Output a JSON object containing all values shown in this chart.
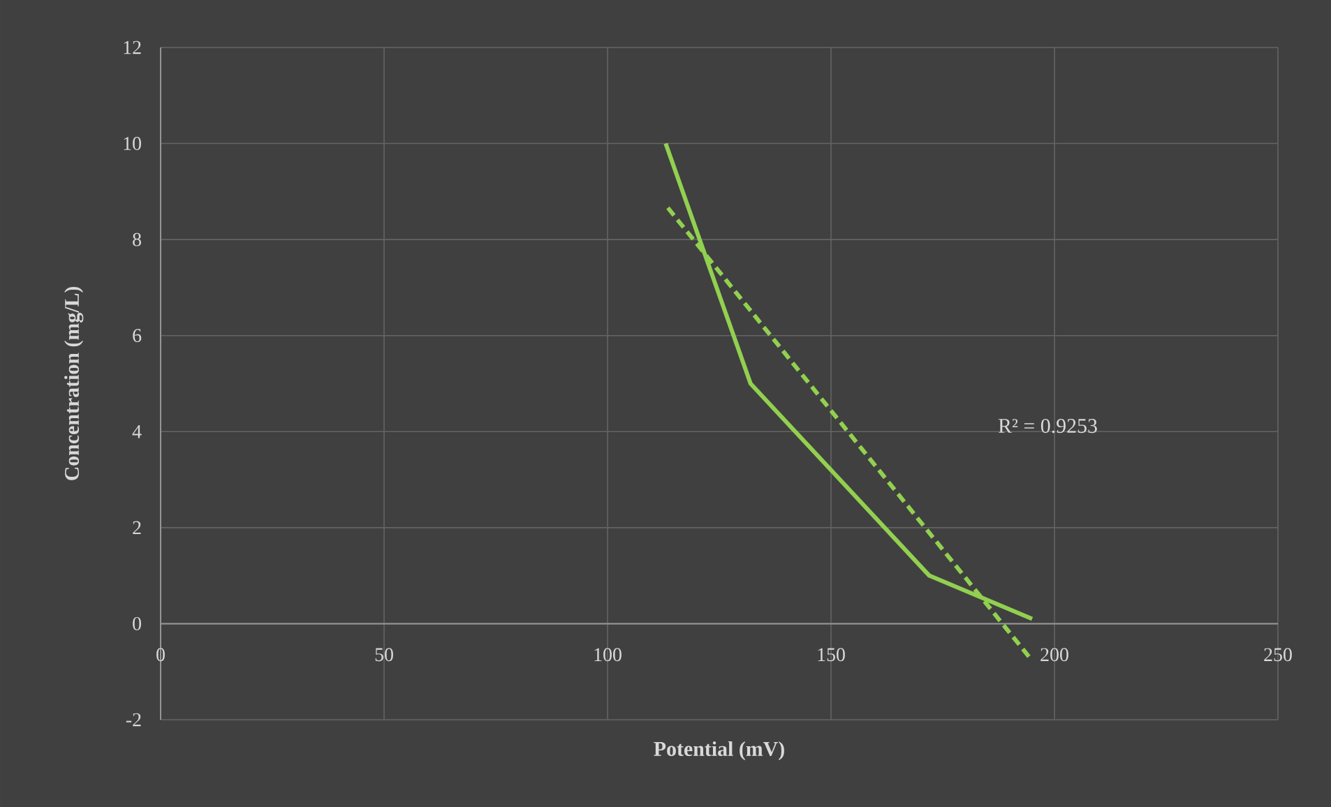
{
  "chart_data": {
    "type": "line",
    "xlabel": "Potential (mV)",
    "ylabel": "Concentration (mg/L)",
    "xlim": [
      0,
      250
    ],
    "xticks": [
      0,
      50,
      100,
      150,
      200,
      250
    ],
    "ylim": [
      -2,
      12
    ],
    "yticks": [
      -2,
      0,
      2,
      4,
      6,
      8,
      10,
      12
    ],
    "grid": true,
    "marker": "none",
    "series": [
      {
        "color": "#92d050",
        "line_style": "solid",
        "x": [
          113,
          132,
          172,
          195
        ],
        "values": [
          10,
          5,
          1,
          0.1
        ]
      },
      {
        "color": "#92d050",
        "line_style": "dashed",
        "x": [
          113.5,
          195
        ],
        "values": [
          8.66,
          -0.77
        ]
      }
    ],
    "annotations": [
      "R² = 0.9253"
    ]
  }
}
